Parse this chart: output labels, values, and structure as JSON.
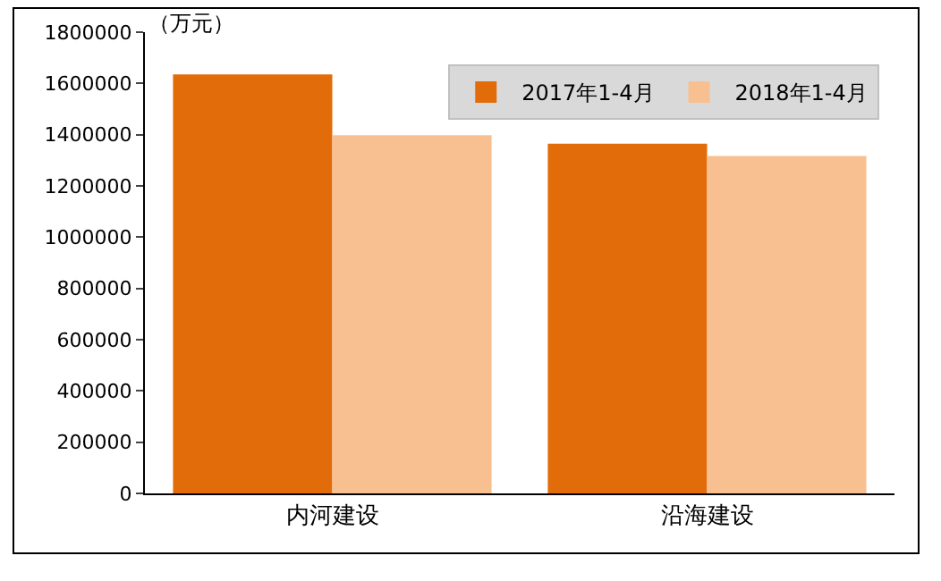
{
  "chart_data": {
    "type": "bar",
    "ylabel": "（万元）",
    "categories": [
      "内河建设",
      "沿海建设"
    ],
    "series": [
      {
        "name": "2017年1-4月",
        "color": "#e36c0a",
        "values": [
          1635000,
          1365000
        ]
      },
      {
        "name": "2018年1-4月",
        "color": "#f8c090",
        "values": [
          1398000,
          1317000
        ]
      }
    ],
    "ylim": [
      0,
      1800000
    ],
    "yticks": [
      0,
      200000,
      400000,
      600000,
      800000,
      1000000,
      1200000,
      1400000,
      1600000,
      1800000
    ],
    "grid": false,
    "legend": "top right"
  }
}
